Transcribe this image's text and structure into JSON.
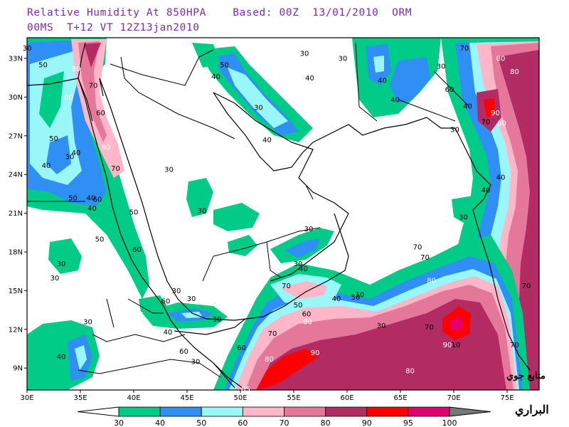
{
  "header": {
    "line1": "Relative Humidity At 850HPA    Based: 00Z  13/01/2010  ORM",
    "line2": "00MS  T+12 VT 12Z13jan2010"
  },
  "axes": {
    "lat_labels": [
      "33N",
      "30N",
      "27N",
      "24N",
      "21N",
      "18N",
      "15N",
      "12N",
      "9N"
    ],
    "lon_labels": [
      "30E",
      "35E",
      "40E",
      "45E",
      "50E",
      "55E",
      "60E",
      "65E",
      "70E",
      "75E"
    ]
  },
  "legend": {
    "bins": [
      {
        "label": "30",
        "color": "#00cc88"
      },
      {
        "label": "40",
        "color": "#2f8ff5"
      },
      {
        "label": "50",
        "color": "#99f7f7"
      },
      {
        "label": "60",
        "color": "#ffb6c8"
      },
      {
        "label": "70",
        "color": "#e5779b"
      },
      {
        "label": "80",
        "color": "#b22b62"
      },
      {
        "label": "90",
        "color": "#ff0000"
      },
      {
        "label": "95",
        "color": "#e0006e"
      },
      {
        "label": "100",
        "color": "#777777"
      }
    ]
  },
  "contour_labels": [
    {
      "t": "50",
      "lon": 31.5,
      "lat": 32.3
    },
    {
      "t": "80",
      "lon": 34.6,
      "lat": 32.0
    },
    {
      "t": "70",
      "lon": 36.2,
      "lat": 30.7
    },
    {
      "t": "80",
      "lon": 33.9,
      "lat": 29.8
    },
    {
      "t": "60",
      "lon": 36.9,
      "lat": 28.6
    },
    {
      "t": "80",
      "lon": 37.4,
      "lat": 25.9
    },
    {
      "t": "50",
      "lon": 32.5,
      "lat": 26.6
    },
    {
      "t": "30",
      "lon": 34.0,
      "lat": 25.2
    },
    {
      "t": "40",
      "lon": 34.6,
      "lat": 25.5
    },
    {
      "t": "40",
      "lon": 31.8,
      "lat": 24.5
    },
    {
      "t": "70",
      "lon": 38.3,
      "lat": 24.3
    },
    {
      "t": "50",
      "lon": 34.3,
      "lat": 22.0
    },
    {
      "t": "40",
      "lon": 36.0,
      "lat": 22.0
    },
    {
      "t": "60",
      "lon": 36.6,
      "lat": 21.9
    },
    {
      "t": "40",
      "lon": 36.1,
      "lat": 21.2
    },
    {
      "t": "50",
      "lon": 40.0,
      "lat": 20.9
    },
    {
      "t": "50",
      "lon": 36.8,
      "lat": 18.8
    },
    {
      "t": "30",
      "lon": 33.2,
      "lat": 16.9
    },
    {
      "t": "30",
      "lon": 43.3,
      "lat": 24.2
    },
    {
      "t": "30",
      "lon": 46.4,
      "lat": 21.0
    },
    {
      "t": "30",
      "lon": 30.0,
      "lat": 33.6
    },
    {
      "t": "50",
      "lon": 48.5,
      "lat": 32.3
    },
    {
      "t": "40",
      "lon": 47.7,
      "lat": 31.4
    },
    {
      "t": "30",
      "lon": 51.7,
      "lat": 29.0
    },
    {
      "t": "40",
      "lon": 52.5,
      "lat": 26.5
    },
    {
      "t": "30",
      "lon": 56.0,
      "lat": 33.2
    },
    {
      "t": "40",
      "lon": 56.5,
      "lat": 31.3
    },
    {
      "t": "40",
      "lon": 63.3,
      "lat": 31.1
    },
    {
      "t": "40",
      "lon": 64.5,
      "lat": 29.6
    },
    {
      "t": "30",
      "lon": 68.8,
      "lat": 32.2
    },
    {
      "t": "70",
      "lon": 71.0,
      "lat": 33.6
    },
    {
      "t": "80",
      "lon": 74.4,
      "lat": 32.8
    },
    {
      "t": "80",
      "lon": 75.7,
      "lat": 31.8
    },
    {
      "t": "60",
      "lon": 69.6,
      "lat": 30.4
    },
    {
      "t": "40",
      "lon": 71.3,
      "lat": 29.1
    },
    {
      "t": "90",
      "lon": 73.9,
      "lat": 28.6
    },
    {
      "t": "70",
      "lon": 73.0,
      "lat": 27.9
    },
    {
      "t": "80",
      "lon": 74.5,
      "lat": 27.8
    },
    {
      "t": "30",
      "lon": 70.1,
      "lat": 27.3
    },
    {
      "t": "40",
      "lon": 74.4,
      "lat": 23.6
    },
    {
      "t": "40",
      "lon": 73.0,
      "lat": 22.6
    },
    {
      "t": "30",
      "lon": 70.9,
      "lat": 20.5
    },
    {
      "t": "60",
      "lon": 40.3,
      "lat": 18.0
    },
    {
      "t": "30",
      "lon": 32.6,
      "lat": 15.8
    },
    {
      "t": "30",
      "lon": 35.7,
      "lat": 12.4
    },
    {
      "t": "40",
      "lon": 33.2,
      "lat": 9.7
    },
    {
      "t": "30",
      "lon": 44.0,
      "lat": 14.8
    },
    {
      "t": "30",
      "lon": 45.4,
      "lat": 14.2
    },
    {
      "t": "60",
      "lon": 43.0,
      "lat": 14.0
    },
    {
      "t": "40",
      "lon": 43.2,
      "lat": 11.6
    },
    {
      "t": "60",
      "lon": 44.7,
      "lat": 10.1
    },
    {
      "t": "30",
      "lon": 45.8,
      "lat": 9.3
    },
    {
      "t": "30",
      "lon": 47.8,
      "lat": 12.6
    },
    {
      "t": "60",
      "lon": 50.1,
      "lat": 10.4
    },
    {
      "t": "70",
      "lon": 53.0,
      "lat": 11.5
    },
    {
      "t": "80",
      "lon": 52.7,
      "lat": 9.5
    },
    {
      "t": "90",
      "lon": 57.0,
      "lat": 10.0
    },
    {
      "t": "85",
      "lon": 50.5,
      "lat": 7.2
    },
    {
      "t": "70",
      "lon": 54.3,
      "lat": 15.2
    },
    {
      "t": "50",
      "lon": 55.4,
      "lat": 13.7
    },
    {
      "t": "60",
      "lon": 56.2,
      "lat": 13.0
    },
    {
      "t": "80",
      "lon": 56.3,
      "lat": 12.4
    },
    {
      "t": "40",
      "lon": 55.9,
      "lat": 16.5
    },
    {
      "t": "30",
      "lon": 55.4,
      "lat": 16.9
    },
    {
      "t": "40",
      "lon": 59.0,
      "lat": 14.2
    },
    {
      "t": "50",
      "lon": 60.8,
      "lat": 14.3
    },
    {
      "t": "10",
      "lon": 61.2,
      "lat": 14.5
    },
    {
      "t": "30",
      "lon": 56.4,
      "lat": 19.6
    },
    {
      "t": "30",
      "lon": 59.6,
      "lat": 32.8
    },
    {
      "t": "30",
      "lon": 63.2,
      "lat": 12.1
    },
    {
      "t": "70",
      "lon": 66.6,
      "lat": 18.2
    },
    {
      "t": "70",
      "lon": 67.3,
      "lat": 17.4
    },
    {
      "t": "80",
      "lon": 67.9,
      "lat": 15.6
    },
    {
      "t": "70",
      "lon": 67.7,
      "lat": 12.0
    },
    {
      "t": "90",
      "lon": 69.4,
      "lat": 10.6
    },
    {
      "t": "10",
      "lon": 70.2,
      "lat": 10.6
    },
    {
      "t": "70",
      "lon": 75.7,
      "lat": 10.6
    },
    {
      "t": "80",
      "lon": 65.9,
      "lat": 8.6
    },
    {
      "t": "70",
      "lon": 76.8,
      "lat": 15.2
    }
  ],
  "watermark": {
    "line1": "متابع جوي",
    "line2": "البراري"
  }
}
